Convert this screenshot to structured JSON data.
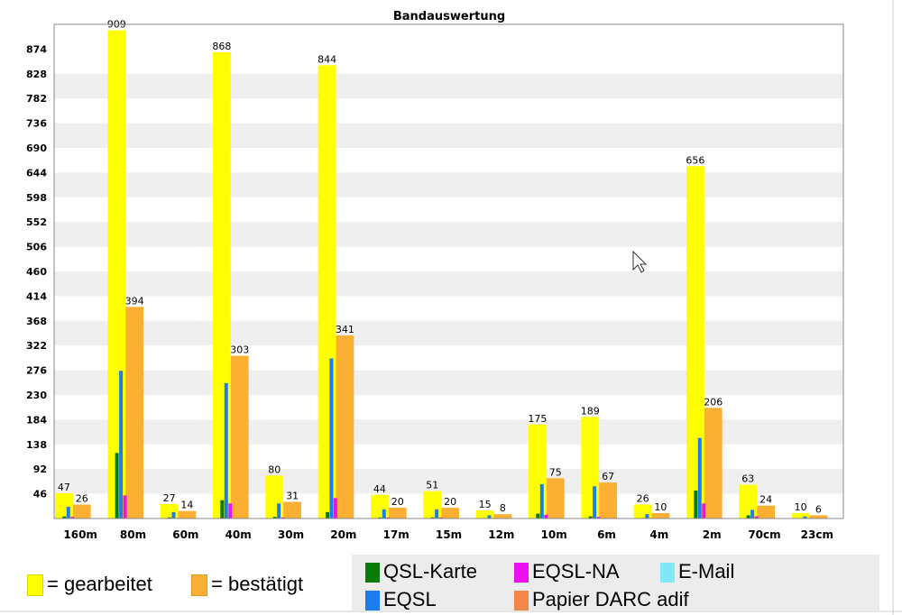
{
  "chart_data": {
    "type": "bar",
    "title": "Bandauswertung",
    "categories": [
      "160m",
      "80m",
      "60m",
      "40m",
      "30m",
      "20m",
      "17m",
      "15m",
      "12m",
      "10m",
      "6m",
      "4m",
      "2m",
      "70cm",
      "23cm"
    ],
    "yticks": [
      46,
      92,
      138,
      184,
      230,
      276,
      322,
      368,
      414,
      460,
      506,
      552,
      598,
      644,
      690,
      736,
      782,
      828,
      874
    ],
    "ylim": [
      0,
      920
    ],
    "grid": "horizontal bands",
    "series": [
      {
        "name": "gearbeitet",
        "color": "#ffff00",
        "values": [
          47,
          909,
          27,
          868,
          80,
          844,
          44,
          51,
          15,
          175,
          189,
          26,
          656,
          63,
          10
        ]
      },
      {
        "name": "bestätigt",
        "color": "#fbb034",
        "values": [
          26,
          394,
          14,
          303,
          31,
          341,
          20,
          20,
          8,
          75,
          67,
          10,
          206,
          24,
          6
        ]
      },
      {
        "name": "QSL-Karte",
        "color": "#0a7a0a",
        "values": [
          4,
          122,
          2,
          34,
          3,
          12,
          2,
          2,
          1,
          9,
          4,
          1,
          52,
          6,
          1
        ]
      },
      {
        "name": "EQSL",
        "color": "#1a7ef0",
        "values": [
          22,
          275,
          12,
          252,
          28,
          298,
          17,
          17,
          6,
          64,
          60,
          8,
          150,
          16,
          4
        ]
      },
      {
        "name": "EQSL-NA",
        "color": "#ee10ee",
        "values": [
          3,
          43,
          1,
          28,
          2,
          38,
          2,
          2,
          1,
          7,
          3,
          1,
          28,
          4,
          1
        ]
      },
      {
        "name": "E-Mail",
        "color": "#7fe8f5",
        "values": [
          0,
          0,
          0,
          0,
          0,
          0,
          0,
          0,
          0,
          0,
          0,
          0,
          0,
          0,
          0
        ]
      },
      {
        "name": "Papier DARC adif",
        "color": "#f5864a",
        "values": [
          0,
          0,
          0,
          0,
          0,
          0,
          0,
          0,
          0,
          0,
          0,
          0,
          0,
          0,
          0
        ]
      }
    ]
  },
  "legend": {
    "gearbeitet": "= gearbeitet",
    "bestaetigt": "= bestätigt",
    "qsl_karte": "QSL-Karte",
    "eqsl_na": "EQSL-NA",
    "email": "E-Mail",
    "eqsl": "EQSL",
    "papier": "Papier DARC adif"
  }
}
